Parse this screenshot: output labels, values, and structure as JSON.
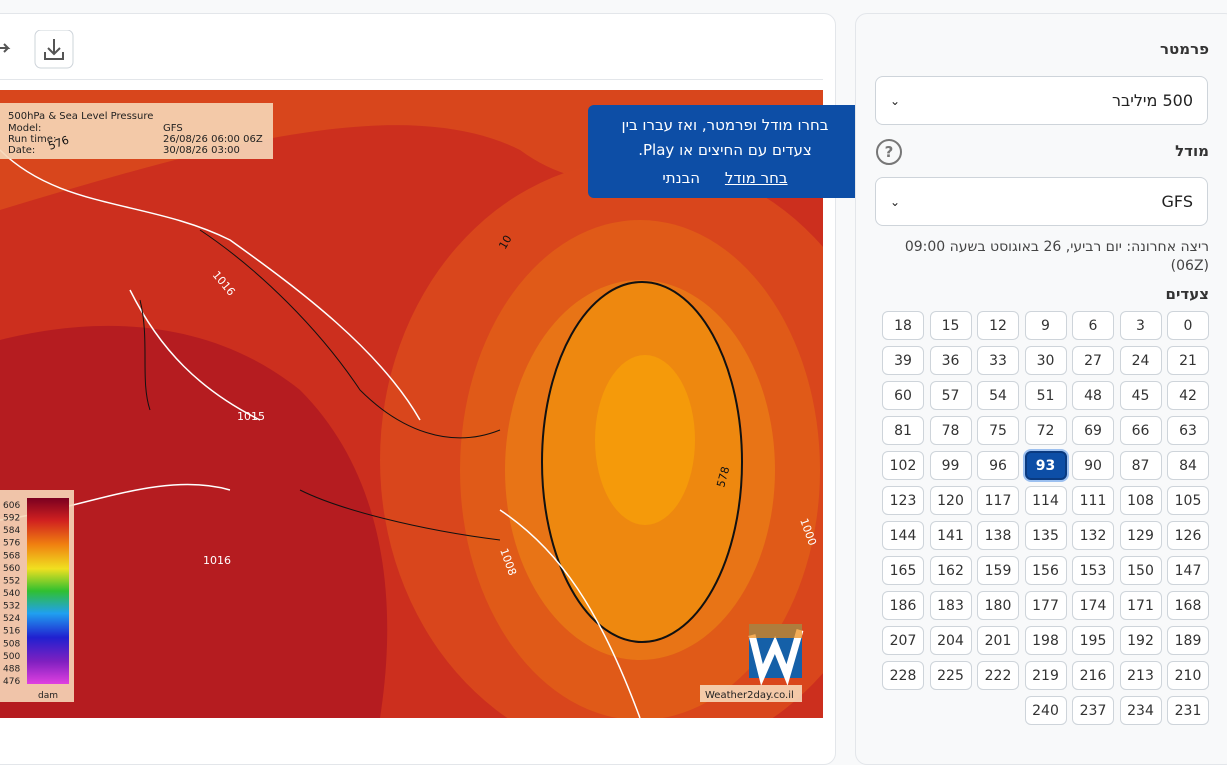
{
  "map": {
    "info": {
      "title": "500hPa & Sea Level Pressure",
      "model_label": "Model:",
      "model": "GFS",
      "run_label": "Run time:",
      "run": "26/08/26 06:00 06Z",
      "date_label": "Date:",
      "date": "30/08/26 03:00"
    },
    "colorbar": {
      "labels": [
        "606",
        "592",
        "584",
        "576",
        "568",
        "560",
        "552",
        "540",
        "532",
        "524",
        "516",
        "508",
        "500",
        "488",
        "476"
      ],
      "unit": "dam"
    },
    "contour_labels": [
      "1016",
      "1015",
      "1016",
      "1008",
      "578",
      "576",
      "10",
      "1000"
    ],
    "watermark": "Weather2day.co.il"
  },
  "tooltip": {
    "text": "בחרו מודל ופרמטר, ואז עברו בין צעדים עם החיצים או Play.",
    "select_model": "בחר מודל",
    "dismiss": "הבנתי"
  },
  "sidebar": {
    "parameter_label": "פרמטר",
    "parameter": "500 מיליבר",
    "model_label": "מודל",
    "model": "GFS",
    "last_run": "ריצה אחרונה: יום רביעי, 26 באוגוסט בשעה 09:00 (06Z)",
    "steps_label": "צעדים",
    "steps": [
      0,
      3,
      6,
      9,
      12,
      15,
      18,
      21,
      24,
      27,
      30,
      33,
      36,
      39,
      42,
      45,
      48,
      51,
      54,
      57,
      60,
      63,
      66,
      69,
      72,
      75,
      78,
      81,
      84,
      87,
      90,
      93,
      96,
      99,
      102,
      105,
      108,
      111,
      114,
      117,
      120,
      123,
      126,
      129,
      132,
      135,
      138,
      141,
      144,
      147,
      150,
      153,
      156,
      159,
      162,
      165,
      168,
      171,
      174,
      177,
      180,
      183,
      186,
      189,
      192,
      195,
      198,
      201,
      204,
      207,
      210,
      213,
      216,
      219,
      222,
      225,
      228,
      231,
      234,
      237,
      240
    ],
    "selected_step": 93
  }
}
